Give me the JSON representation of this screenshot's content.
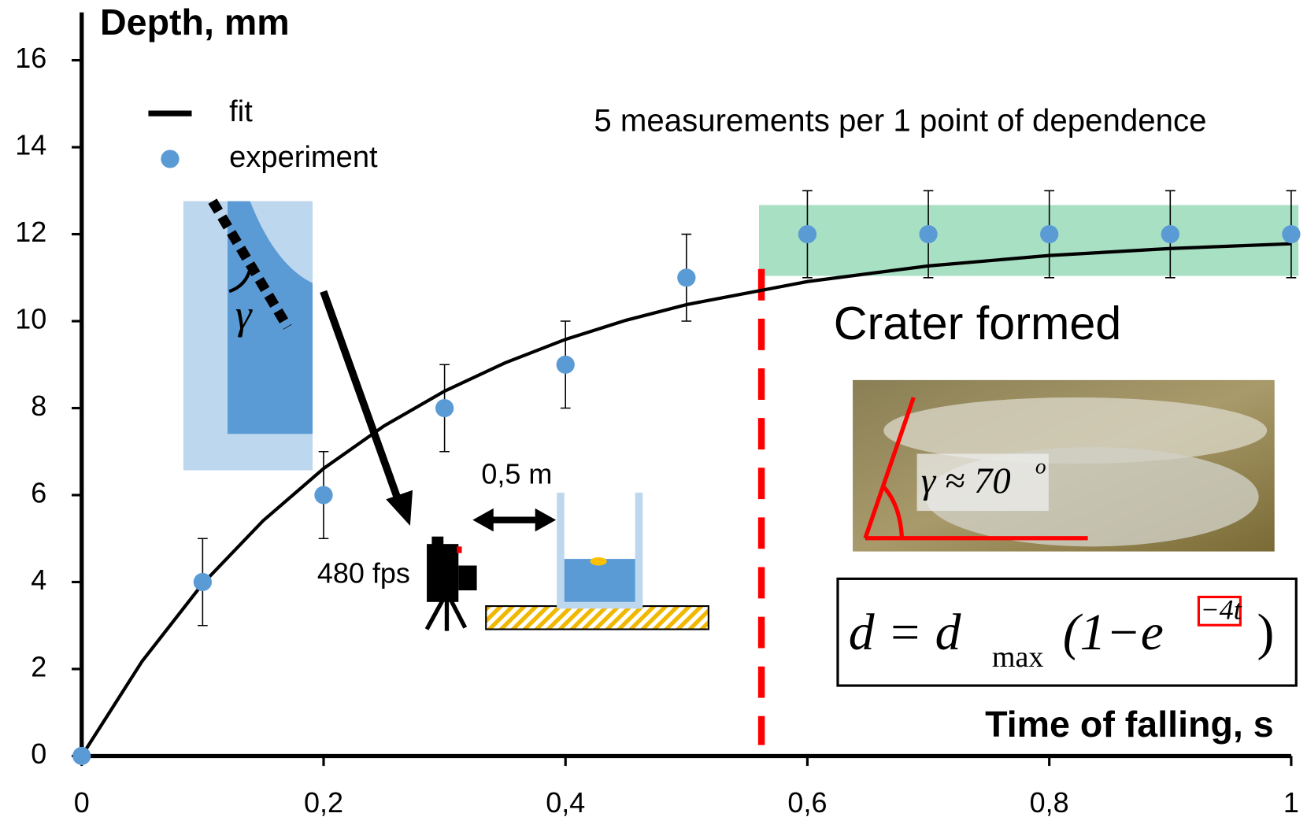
{
  "chart_data": {
    "type": "scatter",
    "y_label": "Depth, mm",
    "x_label": "Time of falling, s",
    "xlim": [
      0,
      1
    ],
    "ylim": [
      0,
      17.1
    ],
    "xticks": [
      0,
      {
        "value": 0.2,
        "label": "0,2"
      },
      {
        "value": 0.4,
        "label": "0,4"
      },
      {
        "value": 0.6,
        "label": "0,6"
      },
      {
        "value": 0.8,
        "label": "0,8"
      },
      1
    ],
    "yticks": [
      0,
      2,
      4,
      6,
      8,
      10,
      12,
      14,
      16
    ],
    "series": [
      {
        "name": "fit",
        "kind": "line",
        "color": "#000000",
        "x": [
          0,
          0.05,
          0.1,
          0.15,
          0.2,
          0.25,
          0.3,
          0.35,
          0.4,
          0.45,
          0.5,
          0.6,
          0.7,
          0.8,
          0.9,
          1
        ],
        "values": [
          0,
          2.18,
          3.96,
          5.41,
          6.61,
          7.59,
          8.39,
          9.04,
          9.58,
          10.02,
          10.38,
          10.91,
          11.27,
          11.51,
          11.67,
          11.78
        ]
      },
      {
        "name": "experiment",
        "kind": "points",
        "color": "#5b9bd5",
        "x": [
          0,
          0.1,
          0.2,
          0.3,
          0.4,
          0.5,
          0.6,
          0.7,
          0.8,
          0.9,
          1
        ],
        "values": [
          0,
          4,
          6,
          8,
          9,
          11,
          12,
          12,
          12,
          12,
          12
        ],
        "yerr": [
          0,
          1,
          1,
          1,
          1,
          1,
          1,
          1,
          1,
          1,
          1
        ],
        "xerr": [
          0.005,
          0.005,
          0.005,
          0.005,
          0.005,
          0.005,
          0.005,
          0.005,
          0.005,
          0.005,
          0.005
        ]
      }
    ],
    "highlight": {
      "x": [
        0.56,
        1.006
      ],
      "y": [
        11.04,
        12.67
      ],
      "color": "#a8e0c4"
    },
    "vline": {
      "x": 0.562,
      "y": [
        0.25,
        11.2
      ],
      "color": "#ff0000"
    },
    "annotations": {
      "note": "5 measurements per 1 point of dependence",
      "crater": "Crater formed",
      "distance": "0,5 m",
      "fps": "480 fps",
      "inset_gamma": "γ",
      "photo_gamma": "γ ≈ 70",
      "photo_gamma_sup": "o"
    },
    "formula": {
      "lhs": "d = d",
      "sub": "max",
      "mid": "(1−e",
      "sup": "−4t",
      "end": ")"
    }
  }
}
